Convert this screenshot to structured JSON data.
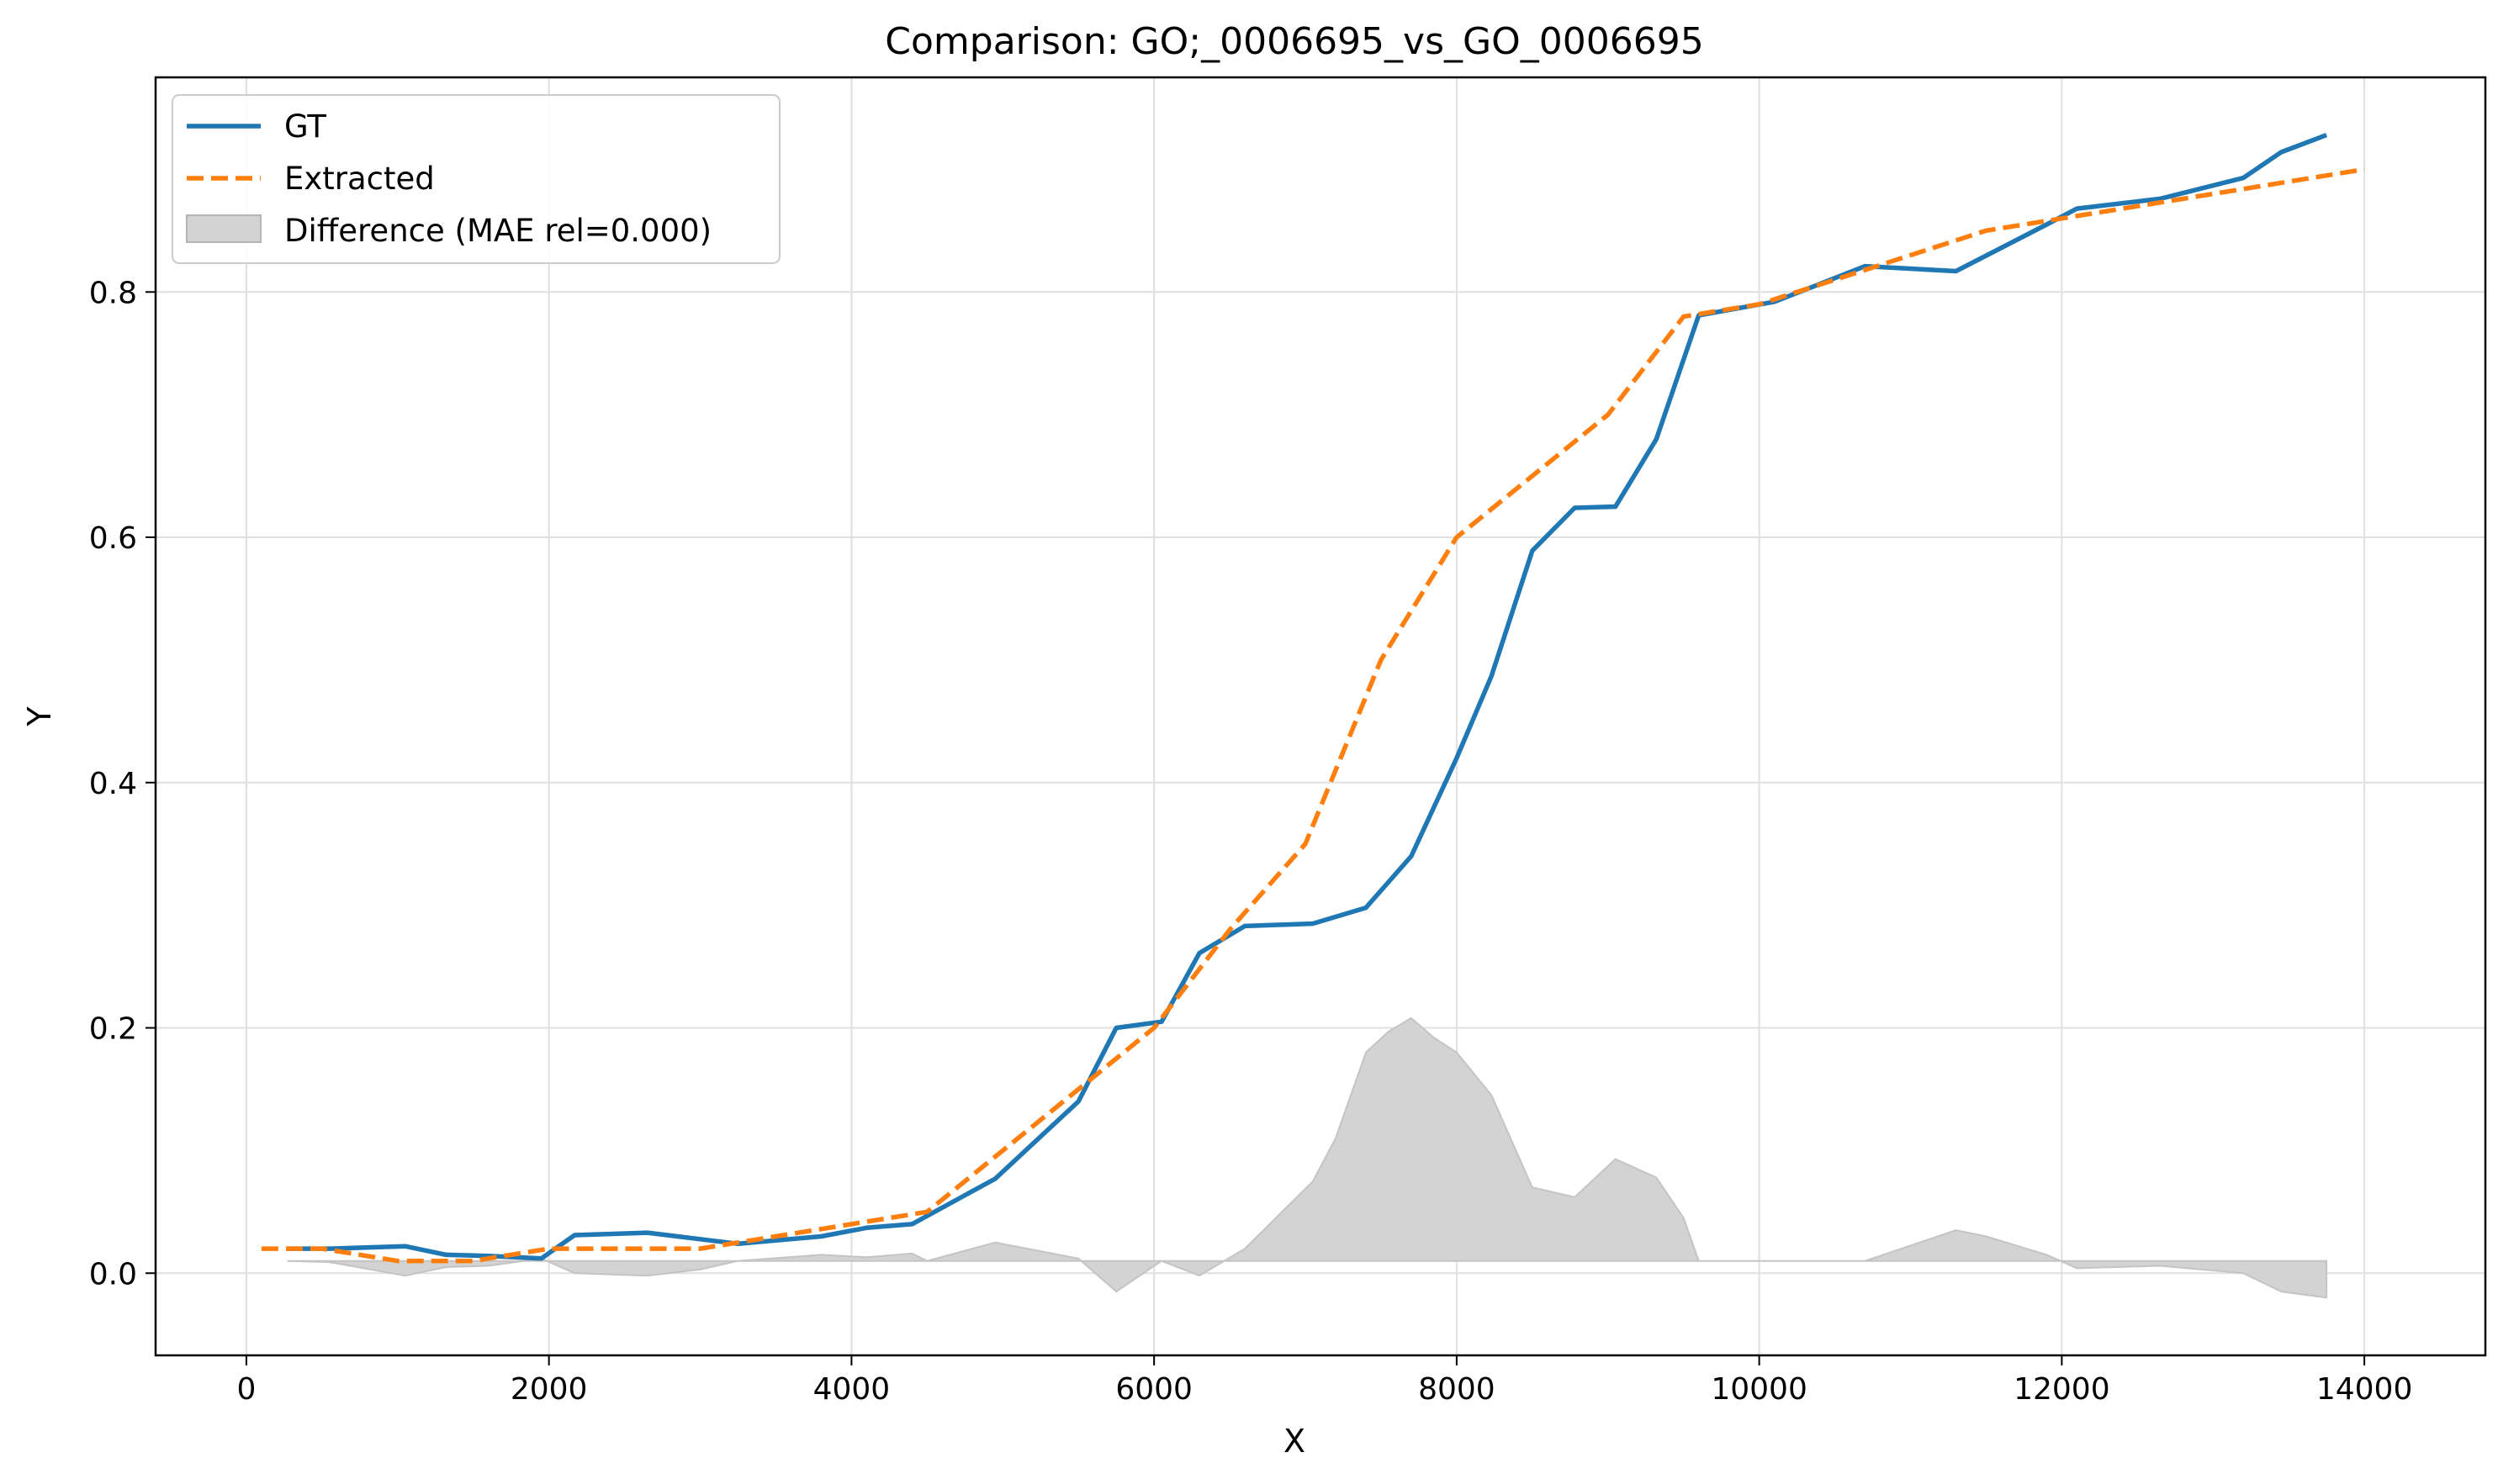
{
  "chart_data": {
    "type": "line",
    "title": "Comparison: GO;_0006695_vs_GO_0006695",
    "xlabel": "X",
    "ylabel": "Y",
    "xlim": [
      -600,
      14800
    ],
    "ylim": [
      -0.067,
      0.975
    ],
    "xticks": [
      0,
      2000,
      4000,
      6000,
      8000,
      10000,
      12000,
      14000
    ],
    "yticks": [
      0.0,
      0.2,
      0.4,
      0.6,
      0.8
    ],
    "grid": true,
    "legend_position": "top-left",
    "colors": {
      "gt": "#1f77b4",
      "extracted": "#ff7f0e",
      "difference": "#d3d3d3"
    },
    "series": [
      {
        "name": "GT",
        "style": "solid",
        "x": [
          270,
          550,
          1050,
          1320,
          1600,
          1950,
          2170,
          2650,
          3250,
          3800,
          4100,
          4400,
          4950,
          5500,
          5750,
          6050,
          6300,
          6600,
          7050,
          7400,
          7700,
          8000,
          8230,
          8500,
          8780,
          9050,
          9320,
          9600,
          10100,
          10700,
          11300,
          11900,
          12100,
          12650,
          13200,
          13450,
          13750
        ],
        "y": [
          0.02,
          0.02,
          0.022,
          0.015,
          0.014,
          0.012,
          0.031,
          0.033,
          0.024,
          0.03,
          0.037,
          0.04,
          0.077,
          0.14,
          0.2,
          0.205,
          0.261,
          0.283,
          0.285,
          0.298,
          0.34,
          0.42,
          0.487,
          0.589,
          0.624,
          0.625,
          0.68,
          0.781,
          0.792,
          0.821,
          0.817,
          0.855,
          0.868,
          0.876,
          0.893,
          0.914,
          0.928
        ]
      },
      {
        "name": "Extracted",
        "style": "dashed",
        "x": [
          100,
          500,
          1000,
          1500,
          2000,
          2500,
          3000,
          3500,
          4000,
          4500,
          5000,
          5500,
          6000,
          6500,
          7000,
          7500,
          8000,
          8500,
          9000,
          9500,
          10000,
          10500,
          11000,
          11500,
          12000,
          12500,
          13000,
          13500,
          14000
        ],
        "y": [
          0.02,
          0.02,
          0.01,
          0.01,
          0.02,
          0.02,
          0.02,
          0.03,
          0.04,
          0.05,
          0.1,
          0.15,
          0.2,
          0.28,
          0.35,
          0.5,
          0.6,
          0.65,
          0.7,
          0.78,
          0.79,
          0.81,
          0.83,
          0.85,
          0.86,
          0.87,
          0.88,
          0.89,
          0.9
        ]
      }
    ],
    "difference": {
      "name": "Difference (MAE rel=0.000)",
      "baseline": 0.01,
      "x": [
        270,
        550,
        1050,
        1320,
        1600,
        1950,
        2170,
        2650,
        3000,
        3250,
        3800,
        4100,
        4400,
        4500,
        4950,
        5500,
        5750,
        6050,
        6300,
        6600,
        7050,
        7200,
        7400,
        7550,
        7700,
        7850,
        8000,
        8230,
        8500,
        8780,
        9050,
        9320,
        9500,
        9600,
        10100,
        10700,
        11300,
        11500,
        11900,
        12100,
        12650,
        13200,
        13450,
        13750
      ],
      "y": [
        0.01,
        0.009,
        -0.002,
        0.005,
        0.006,
        0.012,
        0.0,
        -0.002,
        0.003,
        0.01,
        0.015,
        0.013,
        0.016,
        0.01,
        0.025,
        0.012,
        -0.015,
        0.01,
        -0.002,
        0.02,
        0.075,
        0.11,
        0.18,
        0.197,
        0.208,
        0.192,
        0.18,
        0.145,
        0.07,
        0.062,
        0.093,
        0.078,
        0.045,
        0.01,
        0.01,
        0.01,
        0.035,
        0.03,
        0.015,
        0.004,
        0.006,
        0.0,
        -0.015,
        -0.02
      ]
    }
  }
}
